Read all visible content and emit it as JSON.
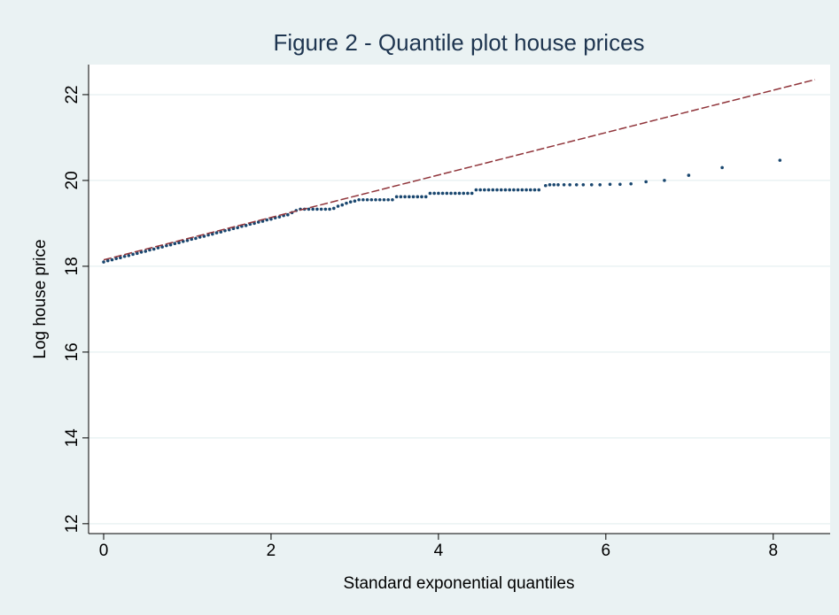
{
  "chart_data": {
    "type": "scatter",
    "title": "Figure 2 - Quantile plot house prices",
    "x_label": "Standard exponential quantiles",
    "y_label": "Log house price",
    "xlim": [
      -0.18,
      8.68
    ],
    "ylim": [
      11.77,
      22.7
    ],
    "xticks": [
      0,
      2,
      4,
      6,
      8
    ],
    "yticks": [
      12,
      14,
      16,
      18,
      20,
      22
    ],
    "grid": true,
    "series": [
      {
        "color": "#1a476f",
        "mode": "markers",
        "x": [
          0,
          0.05,
          0.1,
          0.15,
          0.2,
          0.25,
          0.3,
          0.35,
          0.4,
          0.45,
          0.5,
          0.55,
          0.6,
          0.65,
          0.7,
          0.75,
          0.8,
          0.85,
          0.9,
          0.95,
          1,
          1.05,
          1.1,
          1.15,
          1.2,
          1.25,
          1.3,
          1.35,
          1.4,
          1.45,
          1.5,
          1.55,
          1.6,
          1.65,
          1.7,
          1.75,
          1.8,
          1.85,
          1.9,
          1.95,
          2,
          2.05,
          2.1,
          2.15,
          2.2,
          2.25,
          2.3,
          2.35,
          2.4,
          2.45,
          2.5,
          2.55,
          2.6,
          2.65,
          2.7,
          2.75,
          2.8,
          2.85,
          2.9,
          2.95,
          3,
          3.05,
          3.1,
          3.15,
          3.2,
          3.25,
          3.3,
          3.35,
          3.4,
          3.45,
          3.5,
          3.55,
          3.6,
          3.65,
          3.7,
          3.75,
          3.8,
          3.85,
          3.9,
          3.95,
          4,
          4.05,
          4.1,
          4.15,
          4.2,
          4.25,
          4.3,
          4.35,
          4.4,
          4.45,
          4.5,
          4.55,
          4.6,
          4.65,
          4.7,
          4.75,
          4.8,
          4.85,
          4.9,
          4.95,
          5,
          5.05,
          5.1,
          5.15,
          5.2,
          5.28,
          5.33,
          5.38,
          5.43,
          5.5,
          5.57,
          5.65,
          5.73,
          5.83,
          5.93,
          6.05,
          6.17,
          6.3,
          6.48,
          6.7,
          6.99,
          7.39,
          8.08
        ],
        "values": [
          18.1,
          18.13,
          18.15,
          18.18,
          18.2,
          18.23,
          18.25,
          18.28,
          18.3,
          18.33,
          18.35,
          18.38,
          18.4,
          18.43,
          18.45,
          18.48,
          18.5,
          18.53,
          18.55,
          18.58,
          18.6,
          18.63,
          18.65,
          18.68,
          18.7,
          18.73,
          18.75,
          18.78,
          18.8,
          18.83,
          18.85,
          18.88,
          18.9,
          18.93,
          18.95,
          18.98,
          19.0,
          19.03,
          19.05,
          19.08,
          19.1,
          19.13,
          19.15,
          19.18,
          19.2,
          19.25,
          19.3,
          19.33,
          19.33,
          19.33,
          19.33,
          19.33,
          19.33,
          19.33,
          19.33,
          19.35,
          19.4,
          19.43,
          19.47,
          19.5,
          19.52,
          19.55,
          19.55,
          19.55,
          19.55,
          19.55,
          19.55,
          19.55,
          19.55,
          19.55,
          19.62,
          19.62,
          19.62,
          19.62,
          19.62,
          19.62,
          19.62,
          19.62,
          19.7,
          19.7,
          19.7,
          19.7,
          19.7,
          19.7,
          19.7,
          19.7,
          19.7,
          19.7,
          19.7,
          19.78,
          19.78,
          19.78,
          19.78,
          19.78,
          19.78,
          19.78,
          19.78,
          19.78,
          19.78,
          19.78,
          19.78,
          19.78,
          19.78,
          19.78,
          19.78,
          19.88,
          19.9,
          19.9,
          19.9,
          19.9,
          19.9,
          19.9,
          19.9,
          19.9,
          19.9,
          19.91,
          19.91,
          19.92,
          19.97,
          20.0,
          20.12,
          20.3,
          20.47
        ]
      },
      {
        "color": "#90353b",
        "mode": "dashed-line",
        "x": [
          0,
          8.5
        ],
        "values": [
          18.15,
          22.35
        ]
      }
    ]
  }
}
